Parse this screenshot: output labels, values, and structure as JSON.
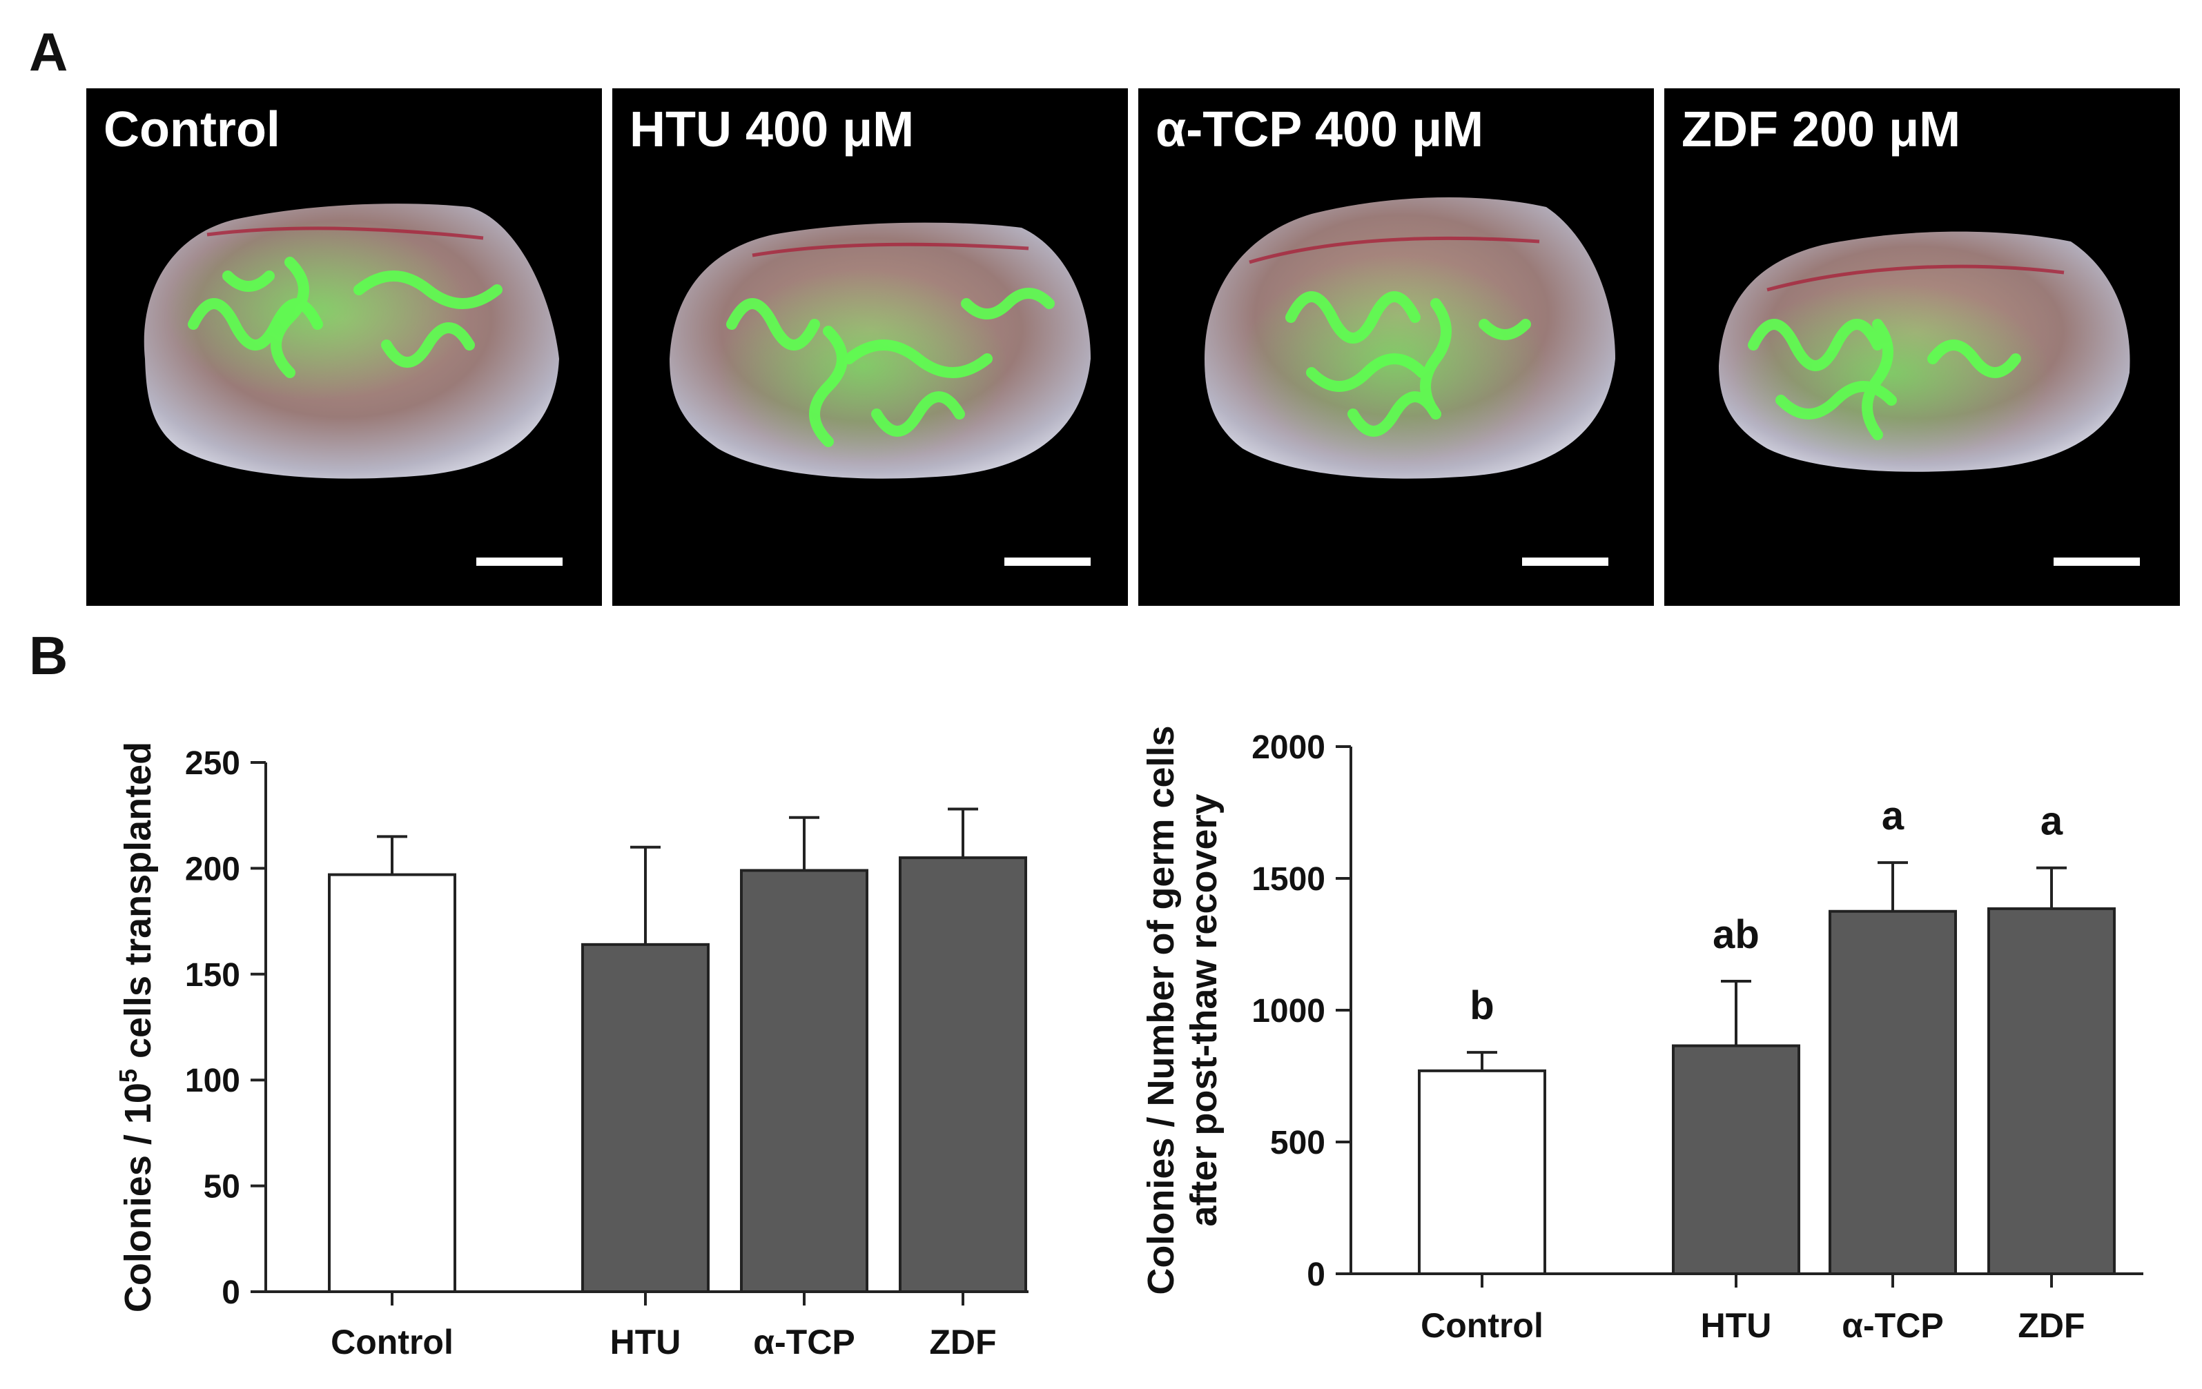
{
  "panel_labels": {
    "a": "A",
    "b": "B"
  },
  "micrographs": [
    {
      "label": "Control"
    },
    {
      "label": "HTU 400 μM"
    },
    {
      "label": "α-TCP 400 μM"
    },
    {
      "label": "ZDF 200 μM"
    }
  ],
  "chart_data": [
    {
      "type": "bar",
      "categories": [
        "Control",
        "HTU",
        "α-TCP",
        "ZDF"
      ],
      "values": [
        197,
        164,
        199,
        205
      ],
      "errors": [
        18,
        46,
        25,
        23
      ],
      "bar_colors": [
        "#ffffff",
        "#5a5a5a",
        "#5a5a5a",
        "#5a5a5a"
      ],
      "ylabel_main": "Colonies / 10",
      "ylabel_sup": "5",
      "ylabel_rest": " cells transplanted",
      "ylim": [
        0,
        250
      ],
      "yticks": [
        0,
        50,
        100,
        150,
        200,
        250
      ],
      "significance": [
        "",
        "",
        "",
        ""
      ],
      "grid": false
    },
    {
      "type": "bar",
      "categories": [
        "Control",
        "HTU",
        "α-TCP",
        "ZDF"
      ],
      "values": [
        770,
        865,
        1375,
        1385
      ],
      "errors": [
        70,
        245,
        185,
        155
      ],
      "bar_colors": [
        "#ffffff",
        "#5a5a5a",
        "#5a5a5a",
        "#5a5a5a"
      ],
      "ylabel_line1": "Colonies / Number of germ cells",
      "ylabel_line2": "after post-thaw recovery",
      "ylim": [
        0,
        2000
      ],
      "yticks": [
        0,
        500,
        1000,
        1500,
        2000
      ],
      "significance": [
        "b",
        "ab",
        "a",
        "a"
      ],
      "grid": false
    }
  ],
  "colors": {
    "image_bg": "#000000",
    "bar_dark": "#5a5a5a",
    "bar_light": "#ffffff",
    "fluorescence": "#58ff52"
  }
}
